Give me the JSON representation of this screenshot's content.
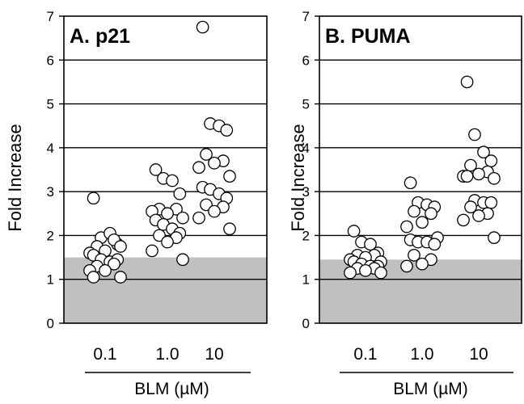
{
  "colors": {
    "shade": "#c0c0c0",
    "point_fill": "#ffffff",
    "point_stroke": "#000000",
    "grid": "#000000"
  },
  "chart_data": [
    {
      "type": "scatter",
      "title": "A. p21",
      "ylabel": "Fold Increase",
      "xlabel": "BLM (µM)",
      "categories": [
        "0.1",
        "1.0",
        "10"
      ],
      "ylim": [
        0,
        7
      ],
      "yticks": [
        "0",
        "1",
        "2",
        "3",
        "4",
        "5",
        "6",
        "7"
      ],
      "grid": true,
      "shaded_band": [
        0,
        1.5
      ],
      "series": [
        {
          "category": "0.1",
          "values": [
            2.85,
            1.95,
            2.05,
            1.8,
            1.75,
            1.9,
            1.65,
            1.6,
            1.75,
            1.55,
            1.45,
            1.4,
            1.45,
            1.3,
            1.35,
            1.2,
            1.2,
            1.05,
            1.05
          ]
        },
        {
          "category": "1.0",
          "values": [
            3.5,
            3.3,
            3.25,
            2.95,
            2.6,
            2.6,
            2.5,
            2.55,
            2.4,
            2.35,
            2.25,
            2.15,
            2.05,
            2.0,
            1.95,
            1.85,
            1.65,
            1.45
          ]
        },
        {
          "category": "10",
          "values": [
            6.75,
            4.55,
            4.5,
            4.4,
            3.85,
            3.7,
            3.65,
            3.55,
            3.35,
            3.1,
            3.05,
            2.95,
            2.85,
            2.7,
            2.65,
            2.55,
            2.4,
            2.15
          ]
        }
      ]
    },
    {
      "type": "scatter",
      "title": "B. PUMA",
      "ylabel": "Fold Increase",
      "xlabel": "BLM (µM)",
      "categories": [
        "0.1",
        "1.0",
        "10"
      ],
      "ylim": [
        0,
        7
      ],
      "yticks": [
        "0",
        "1",
        "2",
        "3",
        "4",
        "5",
        "6",
        "7"
      ],
      "grid": true,
      "shaded_band": [
        0,
        1.45
      ],
      "series": [
        {
          "category": "0.1",
          "values": [
            2.1,
            1.85,
            1.8,
            1.6,
            1.55,
            1.55,
            1.5,
            1.45,
            1.4,
            1.4,
            1.35,
            1.3,
            1.3,
            1.25,
            1.25,
            1.2,
            1.15,
            1.15
          ]
        },
        {
          "category": "1.0",
          "values": [
            3.2,
            2.75,
            2.7,
            2.65,
            2.55,
            2.5,
            2.3,
            2.2,
            1.95,
            1.9,
            1.85,
            1.85,
            1.8,
            1.55,
            1.45,
            1.35,
            1.3
          ]
        },
        {
          "category": "10",
          "values": [
            5.5,
            4.3,
            3.9,
            3.7,
            3.6,
            3.45,
            3.4,
            3.35,
            3.3,
            3.35,
            2.8,
            2.75,
            2.75,
            2.65,
            2.5,
            2.45,
            2.35,
            1.95
          ]
        }
      ]
    }
  ]
}
